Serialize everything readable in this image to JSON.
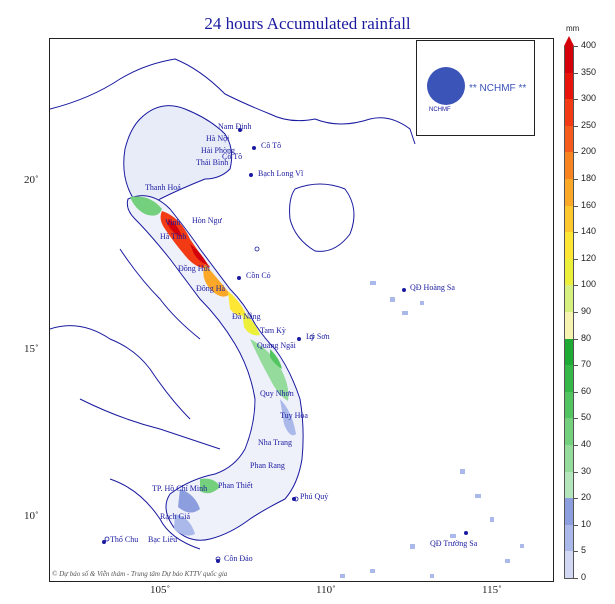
{
  "title": "24 hours Accumulated rainfall",
  "unit": "mm",
  "latitude_labels": [
    "20˚",
    "15˚",
    "10˚"
  ],
  "longitude_labels": [
    "105˚",
    "110˚",
    "115˚"
  ],
  "logo": {
    "name": "NCHMF",
    "text": "** NCHMF **"
  },
  "credit": "© Dự báo số & Viễn thám - Trung tâm Dự báo KTTV quốc gia",
  "places": {
    "nam_dinh": "Nam Định",
    "ha_noi": "Hà Nội",
    "co_to": "Cô Tô",
    "hai_phong": "Hải Phòng",
    "thai_binh": "Thái Bình",
    "bach_long_vi": "Bạch Long Vĩ",
    "thanh_hoa": "Thanh Hoá",
    "vinh": "Vinh",
    "hon_ngu": "Hòn Ngư",
    "ha_tinh": "Hà Tĩnh",
    "dong_hoi": "Đồng Hới",
    "con_co": "Cồn Cỏ",
    "dong_ha": "Đông Hà",
    "hoang_sa": "QĐ Hoàng Sa",
    "da_nang": "Đà Nẵng",
    "tam_ky": "Tam Kỳ",
    "ly_son": "Lý Sơn",
    "quang_ngai": "Quảng Ngãi",
    "quy_nhon": "Quy Nhơn",
    "tuy_hoa": "Tuy Hòa",
    "nha_trang": "Nha Trang",
    "phan_rang": "Phan Rang",
    "phan_thiet": "Phan Thiết",
    "phu_quy": "Phú Quý",
    "tp_hcm": "TP. Hồ Chí Minh",
    "rach_gia": "Rạch Giá",
    "tho_chu": "Thổ Chu",
    "bac_lieu": "Bạc Liêu",
    "con_dao": "Côn Đảo",
    "truong_sa": "QĐ Trường Sa"
  },
  "colorbar": {
    "ticks": [
      "400",
      "350",
      "300",
      "250",
      "200",
      "180",
      "160",
      "140",
      "120",
      "100",
      "90",
      "80",
      "70",
      "60",
      "50",
      "40",
      "30",
      "20",
      "10",
      "5",
      "0"
    ],
    "colors": [
      "#d4000a",
      "#e8140c",
      "#f23a14",
      "#f65a1c",
      "#f88420",
      "#fba828",
      "#fdc82e",
      "#fde634",
      "#ecf03a",
      "#d8f080",
      "#f6f4b0",
      "#1eaa34",
      "#36b848",
      "#52c460",
      "#74d07c",
      "#94db9c",
      "#b4e6bc",
      "#8c9ede",
      "#aab8ea",
      "#d2d8f4"
    ],
    "colors_meaning": "colour of each interval from top (350-400) to bottom (0-5); 0-5 is white",
    "bottom_color": "#ffffff"
  },
  "colors": {
    "title": "#1a1aa0",
    "boundary": "#1a1aa0",
    "rain_max": "#d4000a",
    "rain_high": "#f88420",
    "rain_mid": "#fde634",
    "rain_green": "#36b848",
    "rain_low": "#8c9ede"
  }
}
